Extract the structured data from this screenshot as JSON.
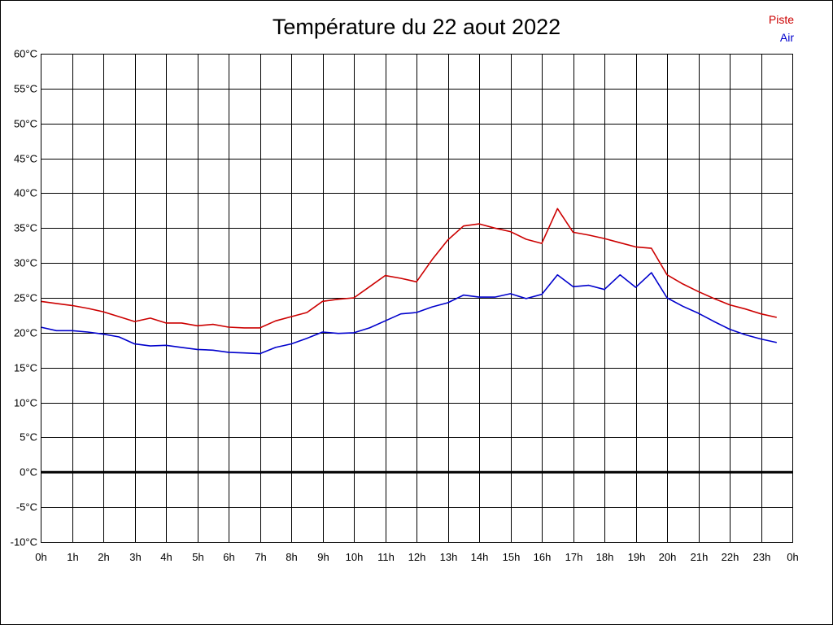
{
  "chart_data": {
    "type": "line",
    "title": "Température du 22 aout 2022",
    "xlabel": "",
    "ylabel": "",
    "x": [
      0,
      0.5,
      1,
      1.5,
      2,
      2.5,
      3,
      3.5,
      4,
      4.5,
      5,
      5.5,
      6,
      6.5,
      7,
      7.5,
      8,
      8.5,
      9,
      9.5,
      10,
      10.5,
      11,
      11.5,
      12,
      12.5,
      13,
      13.5,
      14,
      14.5,
      15,
      15.5,
      16,
      16.5,
      17,
      17.5,
      18,
      18.5,
      19,
      19.5,
      20,
      20.5,
      21,
      21.5,
      22,
      22.5,
      23,
      23.5
    ],
    "xlim": [
      0,
      24
    ],
    "ylim": [
      -10,
      60
    ],
    "grid": true,
    "legend_position": "top-right",
    "x_ticks": [
      "0h",
      "1h",
      "2h",
      "3h",
      "4h",
      "5h",
      "6h",
      "7h",
      "8h",
      "9h",
      "10h",
      "11h",
      "12h",
      "13h",
      "14h",
      "15h",
      "16h",
      "17h",
      "18h",
      "19h",
      "20h",
      "21h",
      "22h",
      "23h",
      "0h"
    ],
    "y_ticks": [
      "-10°C",
      "-5°C",
      "0°C",
      "5°C",
      "10°C",
      "15°C",
      "20°C",
      "25°C",
      "30°C",
      "35°C",
      "40°C",
      "45°C",
      "50°C",
      "55°C",
      "60°C"
    ],
    "series": [
      {
        "name": "Piste",
        "color": "#cc0000",
        "values": [
          24.5,
          24.2,
          23.9,
          23.5,
          23.0,
          22.3,
          21.6,
          22.1,
          21.4,
          21.4,
          21.0,
          21.2,
          20.8,
          20.7,
          20.7,
          21.7,
          22.3,
          22.9,
          24.5,
          24.8,
          25.0,
          26.6,
          28.2,
          27.8,
          27.3,
          30.5,
          33.3,
          35.3,
          35.6,
          35.0,
          34.5,
          33.4,
          32.8,
          37.8,
          34.4,
          34.0,
          33.5,
          32.9,
          32.3,
          32.1,
          28.3,
          27.0,
          25.9,
          24.9,
          24.0,
          23.4,
          22.7,
          22.2
        ]
      },
      {
        "name": "Air",
        "color": "#0000cc",
        "values": [
          20.8,
          20.3,
          20.3,
          20.1,
          19.8,
          19.4,
          18.4,
          18.1,
          18.2,
          17.9,
          17.6,
          17.5,
          17.2,
          17.1,
          17.0,
          17.9,
          18.4,
          19.2,
          20.1,
          19.9,
          20.0,
          20.7,
          21.7,
          22.7,
          22.9,
          23.7,
          24.3,
          25.4,
          25.1,
          25.1,
          25.6,
          24.9,
          25.5,
          28.3,
          26.6,
          26.8,
          26.2,
          28.3,
          26.5,
          28.6,
          25.0,
          23.8,
          22.8,
          21.6,
          20.5,
          19.7,
          19.1,
          18.6
        ]
      }
    ]
  }
}
